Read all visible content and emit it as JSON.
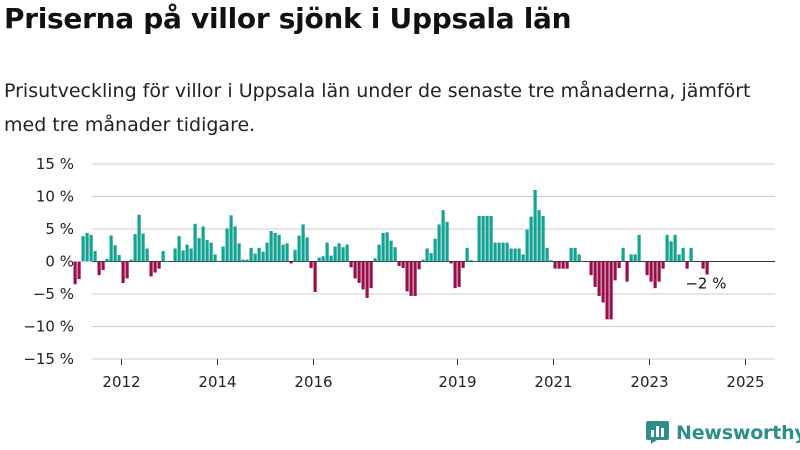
{
  "title": "Priserna på villor sjönk i Uppsala län",
  "subtitle": "Prisutveckling för villor i Uppsala län under de senaste tre månaderna, jämfört med tre månader tidigare.",
  "brand": "Newsworthy",
  "colors": {
    "positive": "#14a393",
    "negative": "#990f4b",
    "grid": "#cccccc",
    "axis": "#333333",
    "brand": "#2e8f8a"
  },
  "chart_data": {
    "type": "bar",
    "title": "Priserna på villor sjönk i Uppsala län",
    "subtitle": "Prisutveckling för villor i Uppsala län under de senaste tre månaderna, jämfört med tre månader tidigare.",
    "xlabel": "",
    "ylabel": "",
    "ylim": [
      -15,
      15
    ],
    "yticks": [
      15,
      10,
      5,
      0,
      -5,
      -10,
      -15
    ],
    "ytick_labels": [
      "15 %",
      "10 %",
      "5 %",
      "0 %",
      "−5 %",
      "−10 %",
      "−15 %"
    ],
    "xtick_labels": [
      "2012",
      "2014",
      "2016",
      "2019",
      "2021",
      "2023",
      "2025"
    ],
    "grid": true,
    "start_year": 2011,
    "months_per_bar": 1,
    "annotation": "−2 %",
    "values": [
      -3.5,
      -2.7,
      3.9,
      4.4,
      4.1,
      1.6,
      -2.1,
      -1.3,
      0.4,
      4.0,
      2.5,
      1,
      -3.3,
      -2.6,
      0.3,
      4.2,
      7.2,
      4.3,
      2.0,
      -2.3,
      -1.7,
      -1.1,
      1.6,
      0.1,
      0,
      2.0,
      3.9,
      1.7,
      2.6,
      2.0,
      5.8,
      3.6,
      5.4,
      3.3,
      2.9,
      1.1,
      0.1,
      2.3,
      5.1,
      7.1,
      5.4,
      2.8,
      0.3,
      0.3,
      2.1,
      1.2,
      2.1,
      1.5,
      2.9,
      4.7,
      4.4,
      4.1,
      2.6,
      2.8,
      -0.3,
      1.8,
      4.0,
      5.7,
      3.7,
      -1.0,
      -4.7,
      0.6,
      0.8,
      2.9,
      0.9,
      2.3,
      2.8,
      2.2,
      2.6,
      -0.9,
      -2.6,
      -3.3,
      -4.3,
      -5.6,
      -4.1,
      0.5,
      2.6,
      4.4,
      4.5,
      3.2,
      2.2,
      -0.7,
      -1.0,
      -4.6,
      -5.3,
      -5.3,
      -1.2,
      0.3,
      2.0,
      1.3,
      3.5,
      5.7,
      7.9,
      6.1,
      -0.3,
      -4.1,
      -3.9,
      -1.0,
      2.1,
      0.2,
      0.1,
      7.0,
      7.0,
      7.0,
      7.0,
      2.9,
      2.9,
      2.9,
      2.9,
      2.0,
      2.0,
      2.0,
      1.1,
      4.9,
      6.9,
      11.0,
      7.9,
      7.0,
      2.1,
      0.2,
      -1.1,
      -1.1,
      -1.1,
      -1.1,
      2.1,
      2.1,
      1.1,
      0.1,
      0,
      -2.1,
      -3.9,
      -5.3,
      -6.3,
      -8.9,
      -8.9,
      -2.9,
      -1.0,
      2.1,
      -3.1,
      1.1,
      1.1,
      4.1,
      0,
      -2.1,
      -3.1,
      -4.1,
      -3.1,
      -1.1,
      4.1,
      3.1,
      4.1,
      1.1,
      2.1,
      -1.1,
      2.1,
      0,
      0,
      -1.1,
      -2.0
    ]
  }
}
